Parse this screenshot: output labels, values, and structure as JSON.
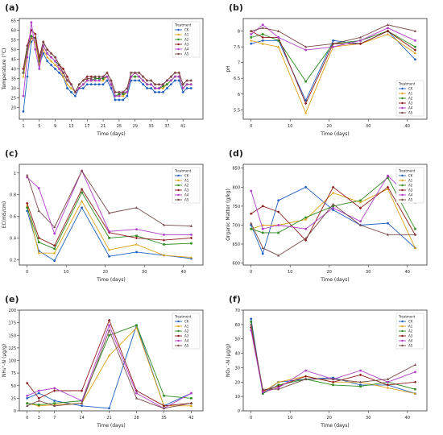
{
  "colors": {
    "CK": "#1f5fbf",
    "A1": "#e0a21a",
    "A2": "#2e8b1f",
    "A3": "#8b1a1a",
    "A4": "#b03cc8",
    "A5": "#7a4a4a"
  },
  "chart_data": [
    {
      "panel": "(a)",
      "type": "line",
      "xlabel": "Time (days)",
      "ylabel": "Temperature (°C)",
      "xlim": [
        0,
        46
      ],
      "ylim": [
        14,
        66
      ],
      "xticks": [
        1,
        5,
        9,
        13,
        17,
        21,
        25,
        29,
        33,
        37,
        41
      ],
      "yticks": [
        20,
        25,
        30,
        35,
        40,
        45,
        50,
        55,
        60,
        65
      ],
      "legend_title": "Treatment",
      "legend_position": "top-right",
      "x": [
        1,
        2,
        3,
        4,
        5,
        6,
        7,
        8,
        9,
        10,
        11,
        12,
        13,
        14,
        15,
        16,
        17,
        18,
        19,
        20,
        21,
        22,
        23,
        24,
        25,
        26,
        27,
        28,
        29,
        30,
        31,
        32,
        33,
        34,
        35,
        36,
        37,
        38,
        39,
        40,
        41,
        42,
        43
      ],
      "series": [
        {
          "name": "CK",
          "values": [
            18,
            36,
            54,
            56,
            42,
            48,
            44,
            42,
            40,
            38,
            36,
            30,
            28,
            26,
            30,
            30,
            32,
            32,
            32,
            32,
            32,
            34,
            30,
            24,
            24,
            24,
            26,
            34,
            34,
            34,
            32,
            30,
            30,
            28,
            28,
            28,
            30,
            32,
            34,
            34,
            28,
            30,
            30
          ]
        },
        {
          "name": "A1",
          "values": [
            36,
            48,
            56,
            54,
            42,
            50,
            46,
            44,
            42,
            40,
            36,
            32,
            30,
            28,
            30,
            32,
            34,
            34,
            34,
            34,
            34,
            36,
            32,
            26,
            26,
            26,
            28,
            36,
            36,
            36,
            34,
            32,
            32,
            30,
            30,
            30,
            32,
            34,
            36,
            36,
            30,
            32,
            32
          ]
        },
        {
          "name": "A2",
          "values": [
            38,
            50,
            57,
            56,
            44,
            52,
            48,
            46,
            44,
            42,
            38,
            34,
            32,
            28,
            30,
            32,
            34,
            34,
            35,
            35,
            35,
            36,
            32,
            26,
            27,
            27,
            28,
            36,
            36,
            36,
            34,
            32,
            32,
            30,
            30,
            31,
            32,
            34,
            36,
            36,
            30,
            32,
            32
          ]
        },
        {
          "name": "A3",
          "values": [
            40,
            52,
            60,
            58,
            46,
            54,
            50,
            48,
            46,
            42,
            40,
            36,
            32,
            28,
            32,
            34,
            36,
            36,
            36,
            36,
            36,
            38,
            34,
            28,
            28,
            28,
            30,
            38,
            38,
            38,
            36,
            34,
            34,
            32,
            32,
            32,
            34,
            36,
            38,
            38,
            32,
            34,
            34
          ]
        },
        {
          "name": "A4",
          "values": [
            26,
            46,
            64,
            50,
            40,
            52,
            48,
            46,
            44,
            40,
            38,
            34,
            32,
            28,
            30,
            32,
            34,
            34,
            34,
            34,
            36,
            36,
            32,
            26,
            26,
            28,
            28,
            36,
            38,
            36,
            34,
            32,
            32,
            30,
            30,
            32,
            34,
            34,
            36,
            36,
            30,
            32,
            32
          ]
        },
        {
          "name": "A5",
          "values": [
            38,
            52,
            56,
            56,
            44,
            54,
            50,
            48,
            46,
            42,
            38,
            34,
            32,
            28,
            32,
            34,
            35,
            35,
            36,
            36,
            36,
            38,
            34,
            28,
            28,
            28,
            30,
            38,
            38,
            38,
            36,
            34,
            34,
            32,
            32,
            32,
            34,
            36,
            38,
            38,
            32,
            34,
            34
          ]
        }
      ]
    },
    {
      "panel": "(b)",
      "type": "line",
      "xlabel": "Time (days)",
      "ylabel": "pH",
      "xlim": [
        -2,
        45
      ],
      "ylim": [
        5.2,
        8.4
      ],
      "xticks": [
        0,
        10,
        20,
        30,
        40
      ],
      "yticks": [
        5.5,
        6.0,
        6.5,
        7.0,
        7.5,
        8.0
      ],
      "legend_title": "Treatment",
      "legend_position": "bottom-right",
      "x": [
        0,
        3,
        7,
        14,
        21,
        28,
        35,
        42
      ],
      "series": [
        {
          "name": "CK",
          "values": [
            7.6,
            7.7,
            7.7,
            5.8,
            7.7,
            7.6,
            8.0,
            7.1
          ]
        },
        {
          "name": "A1",
          "values": [
            7.7,
            7.6,
            7.5,
            5.4,
            7.5,
            7.6,
            7.9,
            7.3
          ]
        },
        {
          "name": "A2",
          "values": [
            7.8,
            7.9,
            7.7,
            6.4,
            7.6,
            7.7,
            8.0,
            7.5
          ]
        },
        {
          "name": "A3",
          "values": [
            8.0,
            7.8,
            7.8,
            5.7,
            7.6,
            7.6,
            8.0,
            7.4
          ]
        },
        {
          "name": "A4",
          "values": [
            7.9,
            8.2,
            7.8,
            7.4,
            7.5,
            7.7,
            8.1,
            7.7
          ]
        },
        {
          "name": "A5",
          "values": [
            8.0,
            8.1,
            8.0,
            7.5,
            7.6,
            7.8,
            8.2,
            8.0
          ]
        }
      ]
    },
    {
      "panel": "(c)",
      "type": "line",
      "xlabel": "Time (days)",
      "ylabel": "EC(mS/cm)",
      "xlim": [
        -2,
        45
      ],
      "ylim": [
        0.15,
        1.08
      ],
      "xticks": [
        0,
        10,
        20,
        30,
        40
      ],
      "yticks": [
        0.2,
        0.4,
        0.6,
        0.8,
        1.0
      ],
      "legend_title": "Treatment",
      "legend_position": "top-right",
      "x": [
        0,
        3,
        7,
        14,
        21,
        28,
        35,
        42
      ],
      "series": [
        {
          "name": "CK",
          "values": [
            0.65,
            0.28,
            0.19,
            0.68,
            0.23,
            0.27,
            0.24,
            0.21
          ]
        },
        {
          "name": "A1",
          "values": [
            0.7,
            0.26,
            0.26,
            0.74,
            0.29,
            0.34,
            0.24,
            0.22
          ]
        },
        {
          "name": "A2",
          "values": [
            0.68,
            0.36,
            0.3,
            0.82,
            0.4,
            0.42,
            0.34,
            0.35
          ]
        },
        {
          "name": "A3",
          "values": [
            0.72,
            0.4,
            0.33,
            0.85,
            0.45,
            0.4,
            0.38,
            0.4
          ]
        },
        {
          "name": "A4",
          "values": [
            0.96,
            0.86,
            0.44,
            1.02,
            0.46,
            0.48,
            0.43,
            0.43
          ]
        },
        {
          "name": "A5",
          "values": [
            0.98,
            0.65,
            0.5,
            1.02,
            0.63,
            0.68,
            0.52,
            0.51
          ]
        }
      ]
    },
    {
      "panel": "(d)",
      "type": "line",
      "xlabel": "Time (days)",
      "ylabel": "Organic Matter (g/kg)",
      "xlim": [
        -2,
        45
      ],
      "ylim": [
        595,
        860
      ],
      "xticks": [
        0,
        10,
        20,
        30,
        40
      ],
      "yticks": [
        600,
        650,
        700,
        750,
        800,
        850
      ],
      "legend_title": "Treatment",
      "legend_position": "top-right",
      "x": [
        0,
        3,
        7,
        14,
        21,
        28,
        35,
        42
      ],
      "series": [
        {
          "name": "CK",
          "values": [
            700,
            625,
            765,
            800,
            740,
            700,
            705,
            640
          ]
        },
        {
          "name": "A1",
          "values": [
            690,
            700,
            700,
            715,
            785,
            760,
            795,
            640
          ]
        },
        {
          "name": "A2",
          "values": [
            690,
            680,
            680,
            720,
            750,
            765,
            825,
            690
          ]
        },
        {
          "name": "A3",
          "values": [
            730,
            750,
            735,
            660,
            800,
            745,
            800,
            675
          ]
        },
        {
          "name": "A4",
          "values": [
            790,
            690,
            700,
            690,
            745,
            710,
            830,
            760
          ]
        },
        {
          "name": "A5",
          "values": [
            705,
            640,
            620,
            665,
            755,
            700,
            675,
            675
          ]
        }
      ]
    },
    {
      "panel": "(e)",
      "type": "line",
      "xlabel": "Time (days)",
      "ylabel": "NH₄⁺-N (μg/g)",
      "xlim": [
        -2,
        45
      ],
      "ylim": [
        0,
        200
      ],
      "xticks": [
        0,
        3,
        7,
        14,
        21,
        28,
        35,
        42
      ],
      "yticks": [
        0,
        25,
        50,
        75,
        100,
        125,
        150,
        175,
        200
      ],
      "legend_title": "Treatment",
      "legend_position": "top-right",
      "x": [
        0,
        3,
        7,
        14,
        21,
        28,
        35,
        42
      ],
      "series": [
        {
          "name": "CK",
          "values": [
            25,
            35,
            20,
            10,
            5,
            170,
            10,
            35
          ]
        },
        {
          "name": "A1",
          "values": [
            15,
            10,
            12,
            15,
            110,
            165,
            10,
            10
          ]
        },
        {
          "name": "A2",
          "values": [
            15,
            12,
            15,
            20,
            150,
            170,
            30,
            25
          ]
        },
        {
          "name": "A3",
          "values": [
            55,
            25,
            40,
            40,
            180,
            40,
            10,
            15
          ]
        },
        {
          "name": "A4",
          "values": [
            30,
            40,
            45,
            20,
            170,
            35,
            5,
            35
          ]
        },
        {
          "name": "A5",
          "values": [
            10,
            20,
            10,
            15,
            160,
            25,
            5,
            15
          ]
        }
      ]
    },
    {
      "panel": "(f)",
      "type": "line",
      "xlabel": "Time (days)",
      "ylabel": "NO₃⁻-N (μg/g)",
      "xlim": [
        -2,
        45
      ],
      "ylim": [
        0,
        70
      ],
      "xticks": [
        0,
        10,
        20,
        30,
        40
      ],
      "yticks": [
        0,
        10,
        20,
        30,
        40,
        50,
        60,
        70
      ],
      "legend_title": "Treatment",
      "legend_position": "top-right",
      "x": [
        0,
        3,
        7,
        14,
        21,
        28,
        35,
        42
      ],
      "series": [
        {
          "name": "CK",
          "values": [
            64,
            12,
            20,
            22,
            23,
            18,
            18,
            12
          ]
        },
        {
          "name": "A1",
          "values": [
            60,
            13,
            20,
            24,
            20,
            20,
            16,
            12
          ]
        },
        {
          "name": "A2",
          "values": [
            62,
            12,
            18,
            22,
            18,
            17,
            20,
            15
          ]
        },
        {
          "name": "A3",
          "values": [
            58,
            14,
            17,
            24,
            20,
            25,
            18,
            20
          ]
        },
        {
          "name": "A4",
          "values": [
            56,
            13,
            16,
            28,
            22,
            28,
            20,
            27
          ]
        },
        {
          "name": "A5",
          "values": [
            60,
            15,
            15,
            22,
            22,
            20,
            22,
            32
          ]
        }
      ]
    }
  ]
}
